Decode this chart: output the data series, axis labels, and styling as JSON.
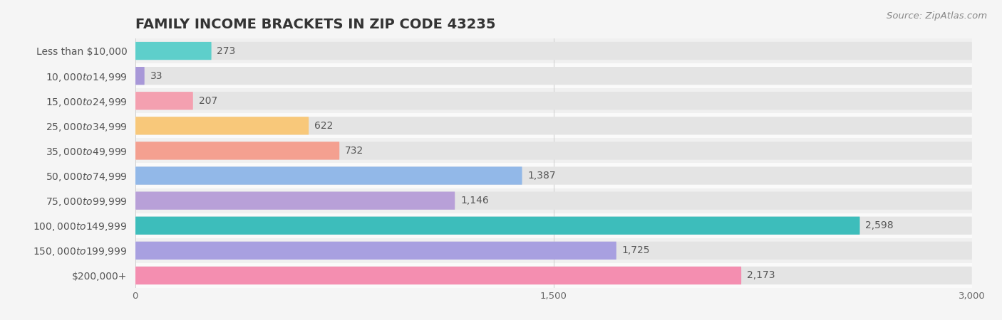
{
  "title": "FAMILY INCOME BRACKETS IN ZIP CODE 43235",
  "source": "Source: ZipAtlas.com",
  "categories": [
    "Less than $10,000",
    "$10,000 to $14,999",
    "$15,000 to $24,999",
    "$25,000 to $34,999",
    "$35,000 to $49,999",
    "$50,000 to $74,999",
    "$75,000 to $99,999",
    "$100,000 to $149,999",
    "$150,000 to $199,999",
    "$200,000+"
  ],
  "values": [
    273,
    33,
    207,
    622,
    732,
    1387,
    1146,
    2598,
    1725,
    2173
  ],
  "bar_colors": [
    "#5ECFCB",
    "#A898D8",
    "#F4A0B0",
    "#F8C87A",
    "#F4A090",
    "#92B8E8",
    "#B8A0D8",
    "#3DBDBB",
    "#A8A0E0",
    "#F48EB0"
  ],
  "background_color": "#f5f5f5",
  "bar_bg_color": "#e4e4e4",
  "row_bg_colors": [
    "#f0f0f0",
    "#fafafa"
  ],
  "xlim": [
    0,
    3000
  ],
  "xticks": [
    0,
    1500,
    3000
  ],
  "title_fontsize": 14,
  "label_fontsize": 10,
  "value_fontsize": 10,
  "source_fontsize": 9.5
}
